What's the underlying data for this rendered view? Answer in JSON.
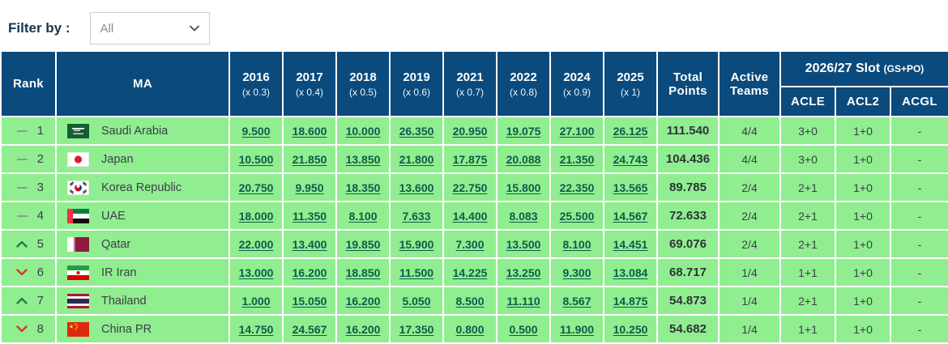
{
  "filter": {
    "label": "Filter by :",
    "value": "All"
  },
  "colors": {
    "header_bg": "#0B4A7C",
    "row_bg": "#90EE90",
    "link": "#0D5C4B",
    "up_arrow": "#1E7E45",
    "down_arrow": "#D0392F",
    "no_change_dash": "#8F959C"
  },
  "table": {
    "headers": {
      "rank": "Rank",
      "ma": "MA",
      "years": [
        {
          "year": "2016",
          "mult": "(x 0.3)"
        },
        {
          "year": "2017",
          "mult": "(x 0.4)"
        },
        {
          "year": "2018",
          "mult": "(x 0.5)"
        },
        {
          "year": "2019",
          "mult": "(x 0.6)"
        },
        {
          "year": "2021",
          "mult": "(x 0.7)"
        },
        {
          "year": "2022",
          "mult": "(x 0.8)"
        },
        {
          "year": "2024",
          "mult": "(x 0.9)"
        },
        {
          "year": "2025",
          "mult": "(x 1)"
        }
      ],
      "total": "Total Points",
      "active": "Active Teams",
      "slot_group": "2026/27 Slot",
      "slot_suffix": "(GS+PO)",
      "slot_cols": [
        "ACLE",
        "ACL2",
        "ACGL"
      ]
    },
    "rows": [
      {
        "movement": "same",
        "rank": "1",
        "flag": "sa",
        "country": "Saudi Arabia",
        "points": [
          "9.500",
          "18.600",
          "10.000",
          "26.350",
          "20.950",
          "19.075",
          "27.100",
          "26.125"
        ],
        "total": "111.540",
        "active": "4/4",
        "acle": "3+0",
        "acl2": "1+0",
        "acgl": "-"
      },
      {
        "movement": "same",
        "rank": "2",
        "flag": "jp",
        "country": "Japan",
        "points": [
          "10.500",
          "21.850",
          "13.850",
          "21.800",
          "17.875",
          "20.088",
          "21.350",
          "24.743"
        ],
        "total": "104.436",
        "active": "4/4",
        "acle": "3+0",
        "acl2": "1+0",
        "acgl": "-"
      },
      {
        "movement": "same",
        "rank": "3",
        "flag": "kr",
        "country": "Korea Republic",
        "points": [
          "20.750",
          "9.950",
          "18.350",
          "13.600",
          "22.750",
          "15.800",
          "22.350",
          "13.565"
        ],
        "total": "89.785",
        "active": "2/4",
        "acle": "2+1",
        "acl2": "1+0",
        "acgl": "-"
      },
      {
        "movement": "same",
        "rank": "4",
        "flag": "ae",
        "country": "UAE",
        "points": [
          "18.000",
          "11.350",
          "8.100",
          "7.633",
          "14.400",
          "8.083",
          "25.500",
          "14.567"
        ],
        "total": "72.633",
        "active": "2/4",
        "acle": "2+1",
        "acl2": "1+0",
        "acgl": "-"
      },
      {
        "movement": "up",
        "rank": "5",
        "flag": "qa",
        "country": "Qatar",
        "points": [
          "22.000",
          "13.400",
          "19.850",
          "15.900",
          "7.300",
          "13.500",
          "8.100",
          "14.451"
        ],
        "total": "69.076",
        "active": "2/4",
        "acle": "2+1",
        "acl2": "1+0",
        "acgl": "-"
      },
      {
        "movement": "down",
        "rank": "6",
        "flag": "ir",
        "country": "IR Iran",
        "points": [
          "13.000",
          "16.200",
          "18.850",
          "11.500",
          "14.225",
          "13.250",
          "9.300",
          "13.084"
        ],
        "total": "68.717",
        "active": "1/4",
        "acle": "1+1",
        "acl2": "1+0",
        "acgl": "-"
      },
      {
        "movement": "up",
        "rank": "7",
        "flag": "th",
        "country": "Thailand",
        "points": [
          "1.000",
          "15.050",
          "16.200",
          "5.050",
          "8.500",
          "11.110",
          "8.567",
          "14.875"
        ],
        "total": "54.873",
        "active": "1/4",
        "acle": "2+1",
        "acl2": "1+0",
        "acgl": "-"
      },
      {
        "movement": "down",
        "rank": "8",
        "flag": "cn",
        "country": "China PR",
        "points": [
          "14.750",
          "24.567",
          "16.200",
          "17.350",
          "0.800",
          "0.500",
          "11.900",
          "10.250"
        ],
        "total": "54.682",
        "active": "1/4",
        "acle": "1+1",
        "acl2": "1+0",
        "acgl": "-"
      }
    ]
  }
}
